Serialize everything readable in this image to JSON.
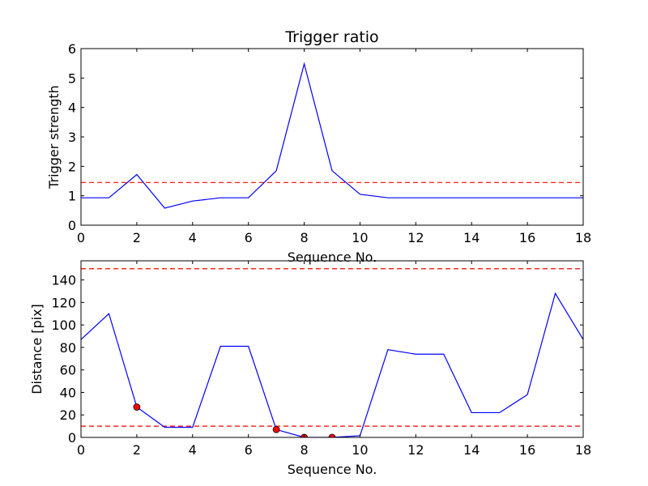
{
  "chart_data": [
    {
      "type": "line",
      "title": "Trigger ratio",
      "xlabel": "Sequence No.",
      "ylabel": "Trigger strength",
      "xlim": [
        0,
        18
      ],
      "ylim": [
        0,
        6
      ],
      "xticks": [
        0,
        2,
        4,
        6,
        8,
        10,
        12,
        14,
        16,
        18
      ],
      "yticks": [
        0,
        1,
        2,
        3,
        4,
        5,
        6
      ],
      "grid": false,
      "series": [
        {
          "color": "#0000ff",
          "style": "solid",
          "x": [
            0,
            1,
            2,
            3,
            4,
            5,
            6,
            7,
            8,
            9,
            10,
            11,
            12,
            13,
            14,
            15,
            16,
            17,
            18
          ],
          "y": [
            0.93,
            0.93,
            1.72,
            0.58,
            0.82,
            0.93,
            0.93,
            1.85,
            5.48,
            1.85,
            1.05,
            0.93,
            0.93,
            0.93,
            0.93,
            0.93,
            0.93,
            0.93,
            0.93
          ]
        }
      ],
      "hlines": [
        {
          "y": 1.45,
          "color": "#ff0000",
          "style": "dashed"
        }
      ]
    },
    {
      "type": "line",
      "title": "",
      "xlabel": "Sequence No.",
      "ylabel": "Distance [pix]",
      "xlim": [
        0,
        18
      ],
      "ylim": [
        0,
        157
      ],
      "xticks": [
        0,
        2,
        4,
        6,
        8,
        10,
        12,
        14,
        16,
        18
      ],
      "yticks": [
        0,
        20,
        40,
        60,
        80,
        100,
        120,
        140
      ],
      "grid": false,
      "series": [
        {
          "color": "#0000ff",
          "style": "solid",
          "x": [
            0,
            1,
            2,
            3,
            4,
            5,
            6,
            7,
            8,
            9,
            10,
            11,
            12,
            13,
            14,
            15,
            16,
            17,
            18
          ],
          "y": [
            87,
            110,
            27,
            9,
            9,
            81,
            81,
            7,
            0,
            0,
            1.5,
            78,
            74,
            74,
            22,
            22,
            38,
            128,
            87
          ]
        }
      ],
      "markers": {
        "color": "#ff0000",
        "x": [
          2,
          7,
          8,
          9
        ],
        "y": [
          27,
          7,
          0,
          0
        ]
      },
      "hlines": [
        {
          "y": 150,
          "color": "#ff0000",
          "style": "dashed"
        },
        {
          "y": 10,
          "color": "#ff0000",
          "style": "dashed"
        }
      ]
    }
  ]
}
